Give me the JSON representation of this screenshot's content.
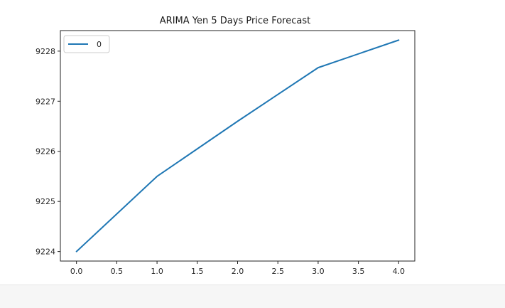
{
  "chart_data": {
    "type": "line",
    "title": "ARIMA Yen 5 Days Price Forecast",
    "xlabel": "",
    "ylabel": "",
    "x": [
      0,
      1,
      2,
      3,
      4
    ],
    "series": [
      {
        "name": "0",
        "values": [
          9224.0,
          9225.5,
          9226.6,
          9227.67,
          9228.22
        ]
      }
    ],
    "xlim": [
      -0.2,
      4.2
    ],
    "ylim": [
      9223.81,
      9228.41
    ],
    "xticks": [
      0.0,
      0.5,
      1.0,
      1.5,
      2.0,
      2.5,
      3.0,
      3.5,
      4.0
    ],
    "xtick_labels": [
      "0.0",
      "0.5",
      "1.0",
      "1.5",
      "2.0",
      "2.5",
      "3.0",
      "3.5",
      "4.0"
    ],
    "yticks": [
      9224,
      9225,
      9226,
      9227,
      9228
    ],
    "ytick_labels": [
      "9224",
      "9225",
      "9226",
      "9227",
      "9228"
    ],
    "legend": {
      "position": "top-left",
      "entries": [
        "0"
      ]
    },
    "grid": false,
    "line_color": "#1f77b4"
  }
}
